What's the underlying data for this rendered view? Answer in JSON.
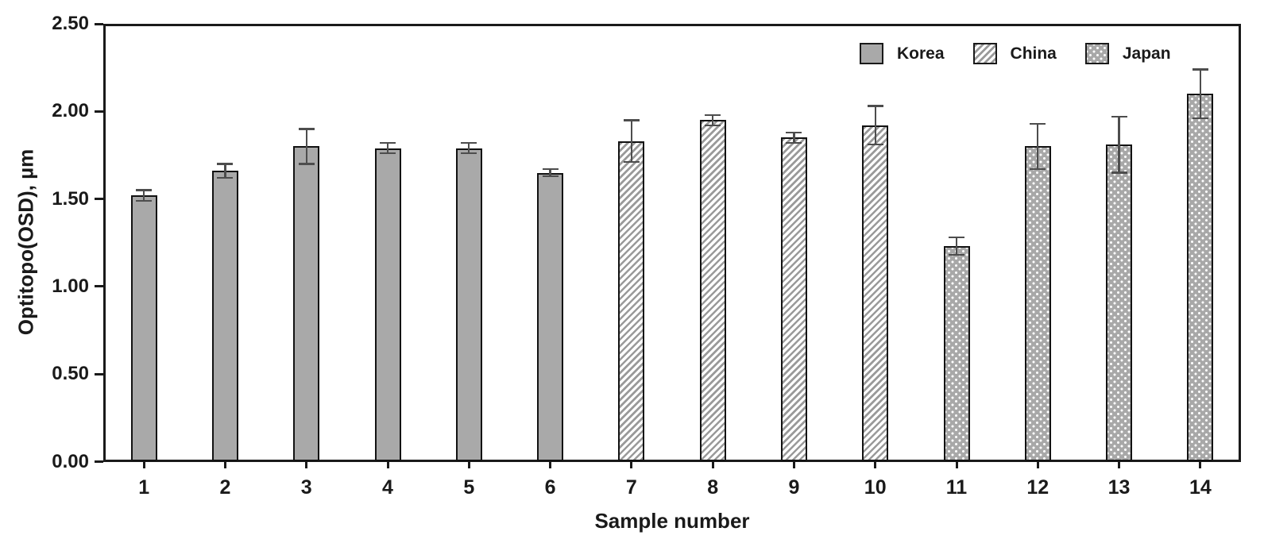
{
  "chart_data": {
    "type": "bar",
    "title": "",
    "xlabel": "Sample number",
    "ylabel": "Optitopo(OSD), µm",
    "ylim": [
      0.0,
      2.5
    ],
    "yticks": [
      0.0,
      0.5,
      1.0,
      1.5,
      2.0,
      2.5
    ],
    "ytick_labels": [
      "0.00",
      "0.50",
      "1.00",
      "1.50",
      "2.00",
      "2.50"
    ],
    "categories": [
      "1",
      "2",
      "3",
      "4",
      "5",
      "6",
      "7",
      "8",
      "9",
      "10",
      "11",
      "12",
      "13",
      "14"
    ],
    "grid": false,
    "error_bars": true,
    "legend_position": "top-right-inside",
    "series": [
      {
        "name": "Korea",
        "pattern": "solid",
        "fill": "#a9a9a9",
        "pattern_color": "#a9a9a9",
        "samples": [
          "1",
          "2",
          "3",
          "4",
          "5",
          "6"
        ],
        "values": [
          1.52,
          1.66,
          1.8,
          1.79,
          1.79,
          1.65
        ],
        "errors": [
          0.03,
          0.04,
          0.1,
          0.03,
          0.03,
          0.02
        ]
      },
      {
        "name": "China",
        "pattern": "diagonal-hatch",
        "fill": "#ffffff",
        "pattern_color": "#9a9a9a",
        "samples": [
          "7",
          "8",
          "9",
          "10"
        ],
        "values": [
          1.83,
          1.95,
          1.85,
          1.92
        ],
        "errors": [
          0.12,
          0.03,
          0.03,
          0.11
        ]
      },
      {
        "name": "Japan",
        "pattern": "dots",
        "fill": "#a8a8a8",
        "pattern_color": "#ffffff",
        "samples": [
          "11",
          "12",
          "13",
          "14"
        ],
        "values": [
          1.23,
          1.8,
          1.81,
          2.1
        ],
        "errors": [
          0.05,
          0.13,
          0.16,
          0.14
        ]
      }
    ],
    "colors": {
      "background": "#ffffff",
      "axis": "#1a1a1a",
      "text": "#1a1a1a",
      "bar_border": "#121212",
      "error_bar": "#4d4d4d"
    }
  }
}
